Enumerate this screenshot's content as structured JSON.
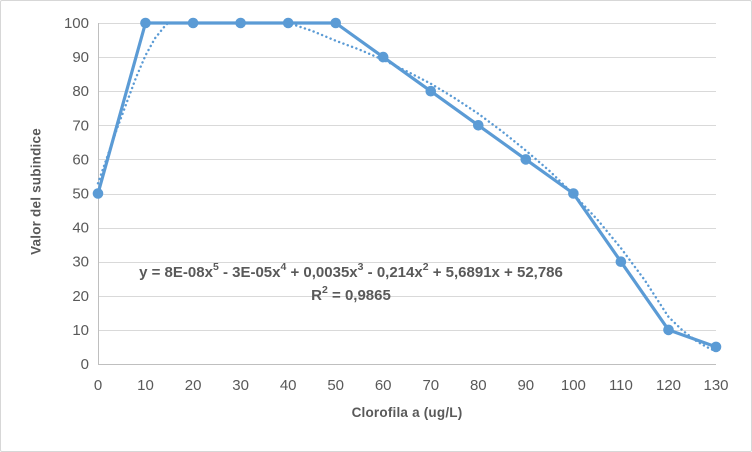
{
  "colors": {
    "series_blue": "#5B9BD5",
    "gridline": "#D9D9D9",
    "axis_line": "#BFBFBF",
    "text_gray": "#595959"
  },
  "chart_data": {
    "type": "line",
    "title": "",
    "xlabel": "Clorofila a (ug/L)",
    "ylabel": "Valor del subindice",
    "xlim": [
      0,
      130
    ],
    "ylim": [
      0,
      100
    ],
    "grid": true,
    "legend": false,
    "x_ticks": [
      0,
      10,
      20,
      30,
      40,
      50,
      60,
      70,
      80,
      90,
      100,
      110,
      120,
      130
    ],
    "y_ticks": [
      0,
      10,
      20,
      30,
      40,
      50,
      60,
      70,
      80,
      90,
      100
    ],
    "series": [
      {
        "name": "Valor del subindice",
        "color": "#5B9BD5",
        "marker": "circle",
        "x": [
          0,
          10,
          20,
          30,
          40,
          50,
          60,
          70,
          80,
          90,
          100,
          110,
          120,
          130
        ],
        "y": [
          50,
          100,
          100,
          100,
          100,
          100,
          90,
          80,
          70,
          60,
          50,
          30,
          10,
          5
        ]
      }
    ],
    "trendline": {
      "name": "polynomial-trendline-order-5",
      "style": "dotted",
      "color": "#5B9BD5",
      "points": [
        [
          0,
          53
        ],
        [
          2,
          61
        ],
        [
          4,
          69
        ],
        [
          6,
          76.5
        ],
        [
          8,
          84
        ],
        [
          10,
          90.5
        ],
        [
          12,
          95.5
        ],
        [
          14,
          99
        ],
        [
          16,
          101.8
        ],
        [
          20,
          104.6
        ],
        [
          25,
          105.6
        ],
        [
          30,
          104.9
        ],
        [
          35,
          103
        ],
        [
          38,
          101.4
        ],
        [
          40,
          100.2
        ],
        [
          42,
          99.1
        ],
        [
          45,
          97.7
        ],
        [
          50,
          94.8
        ],
        [
          55,
          92.2
        ],
        [
          60,
          89.2
        ],
        [
          65,
          85.8
        ],
        [
          70,
          82.2
        ],
        [
          75,
          78
        ],
        [
          80,
          73.4
        ],
        [
          85,
          68.2
        ],
        [
          90,
          62.6
        ],
        [
          95,
          56.6
        ],
        [
          100,
          49.8
        ],
        [
          105,
          42.4
        ],
        [
          110,
          34
        ],
        [
          115,
          24.6
        ],
        [
          120,
          13.8
        ],
        [
          123,
          9.8
        ],
        [
          126,
          6.6
        ],
        [
          128,
          5
        ],
        [
          130,
          3.7
        ]
      ]
    },
    "equation": {
      "text_line1": "y = 8E-08x5 - 3E-05x4 + 0,0035x3 - 0,214x2 + 5,6891x + 52,786",
      "text_line2": "R2 = 0,9865",
      "line1_parts": [
        {
          "t": "y = 8E-08x",
          "sup": "5"
        },
        {
          "t": " - 3E-05x",
          "sup": "4"
        },
        {
          "t": " + 0,0035x",
          "sup": "3"
        },
        {
          "t": " - 0,214x",
          "sup": "2"
        },
        {
          "t": " + 5,6891x + 52,786",
          "sup": ""
        }
      ],
      "line2_parts": [
        {
          "t": "R",
          "sup": "2"
        },
        {
          "t": " = 0,9865",
          "sup": ""
        }
      ]
    }
  }
}
